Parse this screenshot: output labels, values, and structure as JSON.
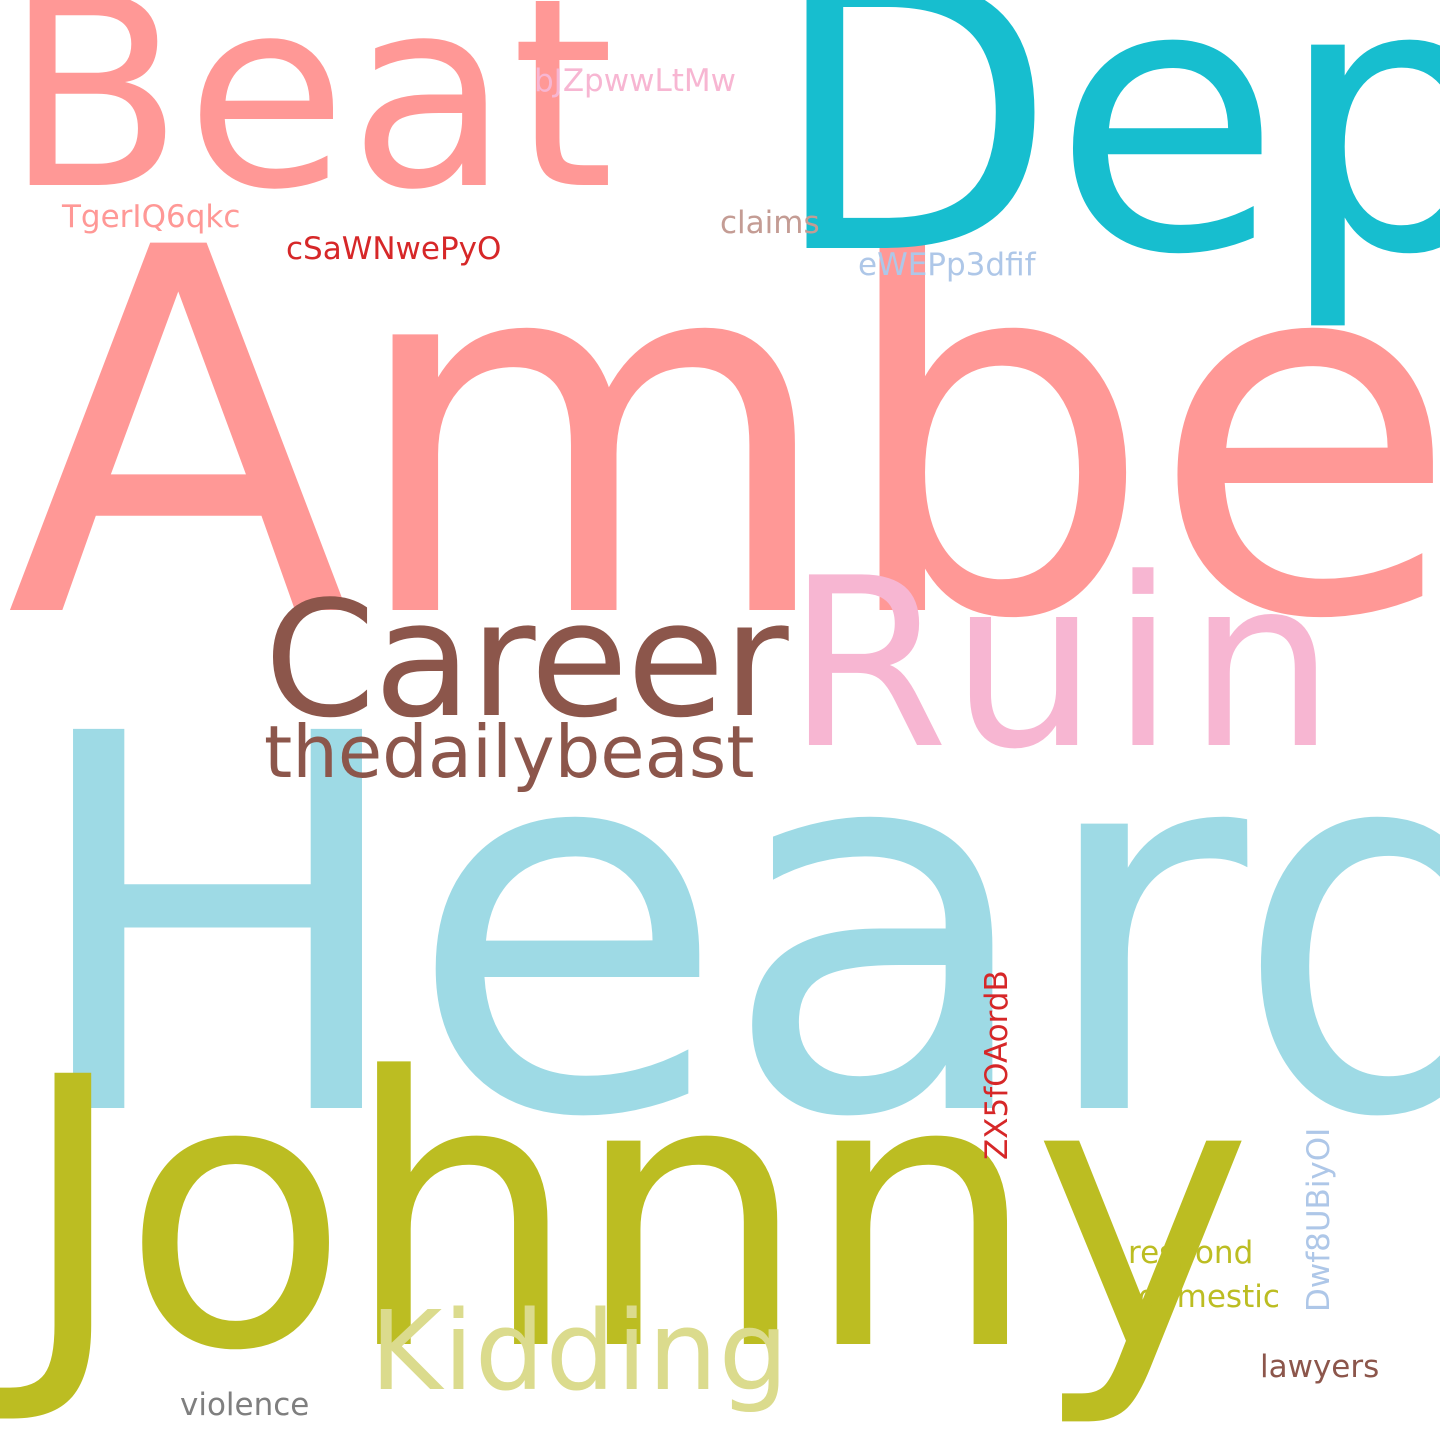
{
  "word_cloud": {
    "background": "#ffffff",
    "words": {
      "amber": {
        "text": "Amber",
        "color": "#ff9896"
      },
      "heard": {
        "text": "Heard",
        "color": "#9edae5"
      },
      "depp": {
        "text": "Depp",
        "color": "#17becf"
      },
      "beat": {
        "text": "Beat",
        "color": "#ff9896"
      },
      "johnny": {
        "text": "Johnny",
        "color": "#bcbd22"
      },
      "ruin": {
        "text": "Ruin",
        "color": "#f7b6d2"
      },
      "career": {
        "text": "Career",
        "color": "#8c564b"
      },
      "kidding": {
        "text": "Kidding",
        "color": "#dbdb8d"
      },
      "thedaily": {
        "text": "thedailybeast",
        "color": "#8c564b"
      },
      "bjz": {
        "text": "bJZpwwLtMw",
        "color": "#f7b6d2"
      },
      "tger": {
        "text": "TgerIQ6qkc",
        "color": "#ff9896"
      },
      "csaw": {
        "text": "cSaWNwePyO",
        "color": "#d62728"
      },
      "claims": {
        "text": "claims",
        "color": "#c49c94"
      },
      "ewep": {
        "text": "eWEPp3dfif",
        "color": "#aec7e8"
      },
      "zx5": {
        "text": "ZX5fOAordB",
        "color": "#d62728"
      },
      "dwf": {
        "text": "Dwf8UBiyOI",
        "color": "#aec7e8"
      },
      "respond": {
        "text": "respond",
        "color": "#bcbd22"
      },
      "domestic": {
        "text": "domestic",
        "color": "#bcbd22"
      },
      "lawyers": {
        "text": "lawyers",
        "color": "#8c564b"
      },
      "violence": {
        "text": "violence",
        "color": "#7f7f7f"
      }
    }
  }
}
